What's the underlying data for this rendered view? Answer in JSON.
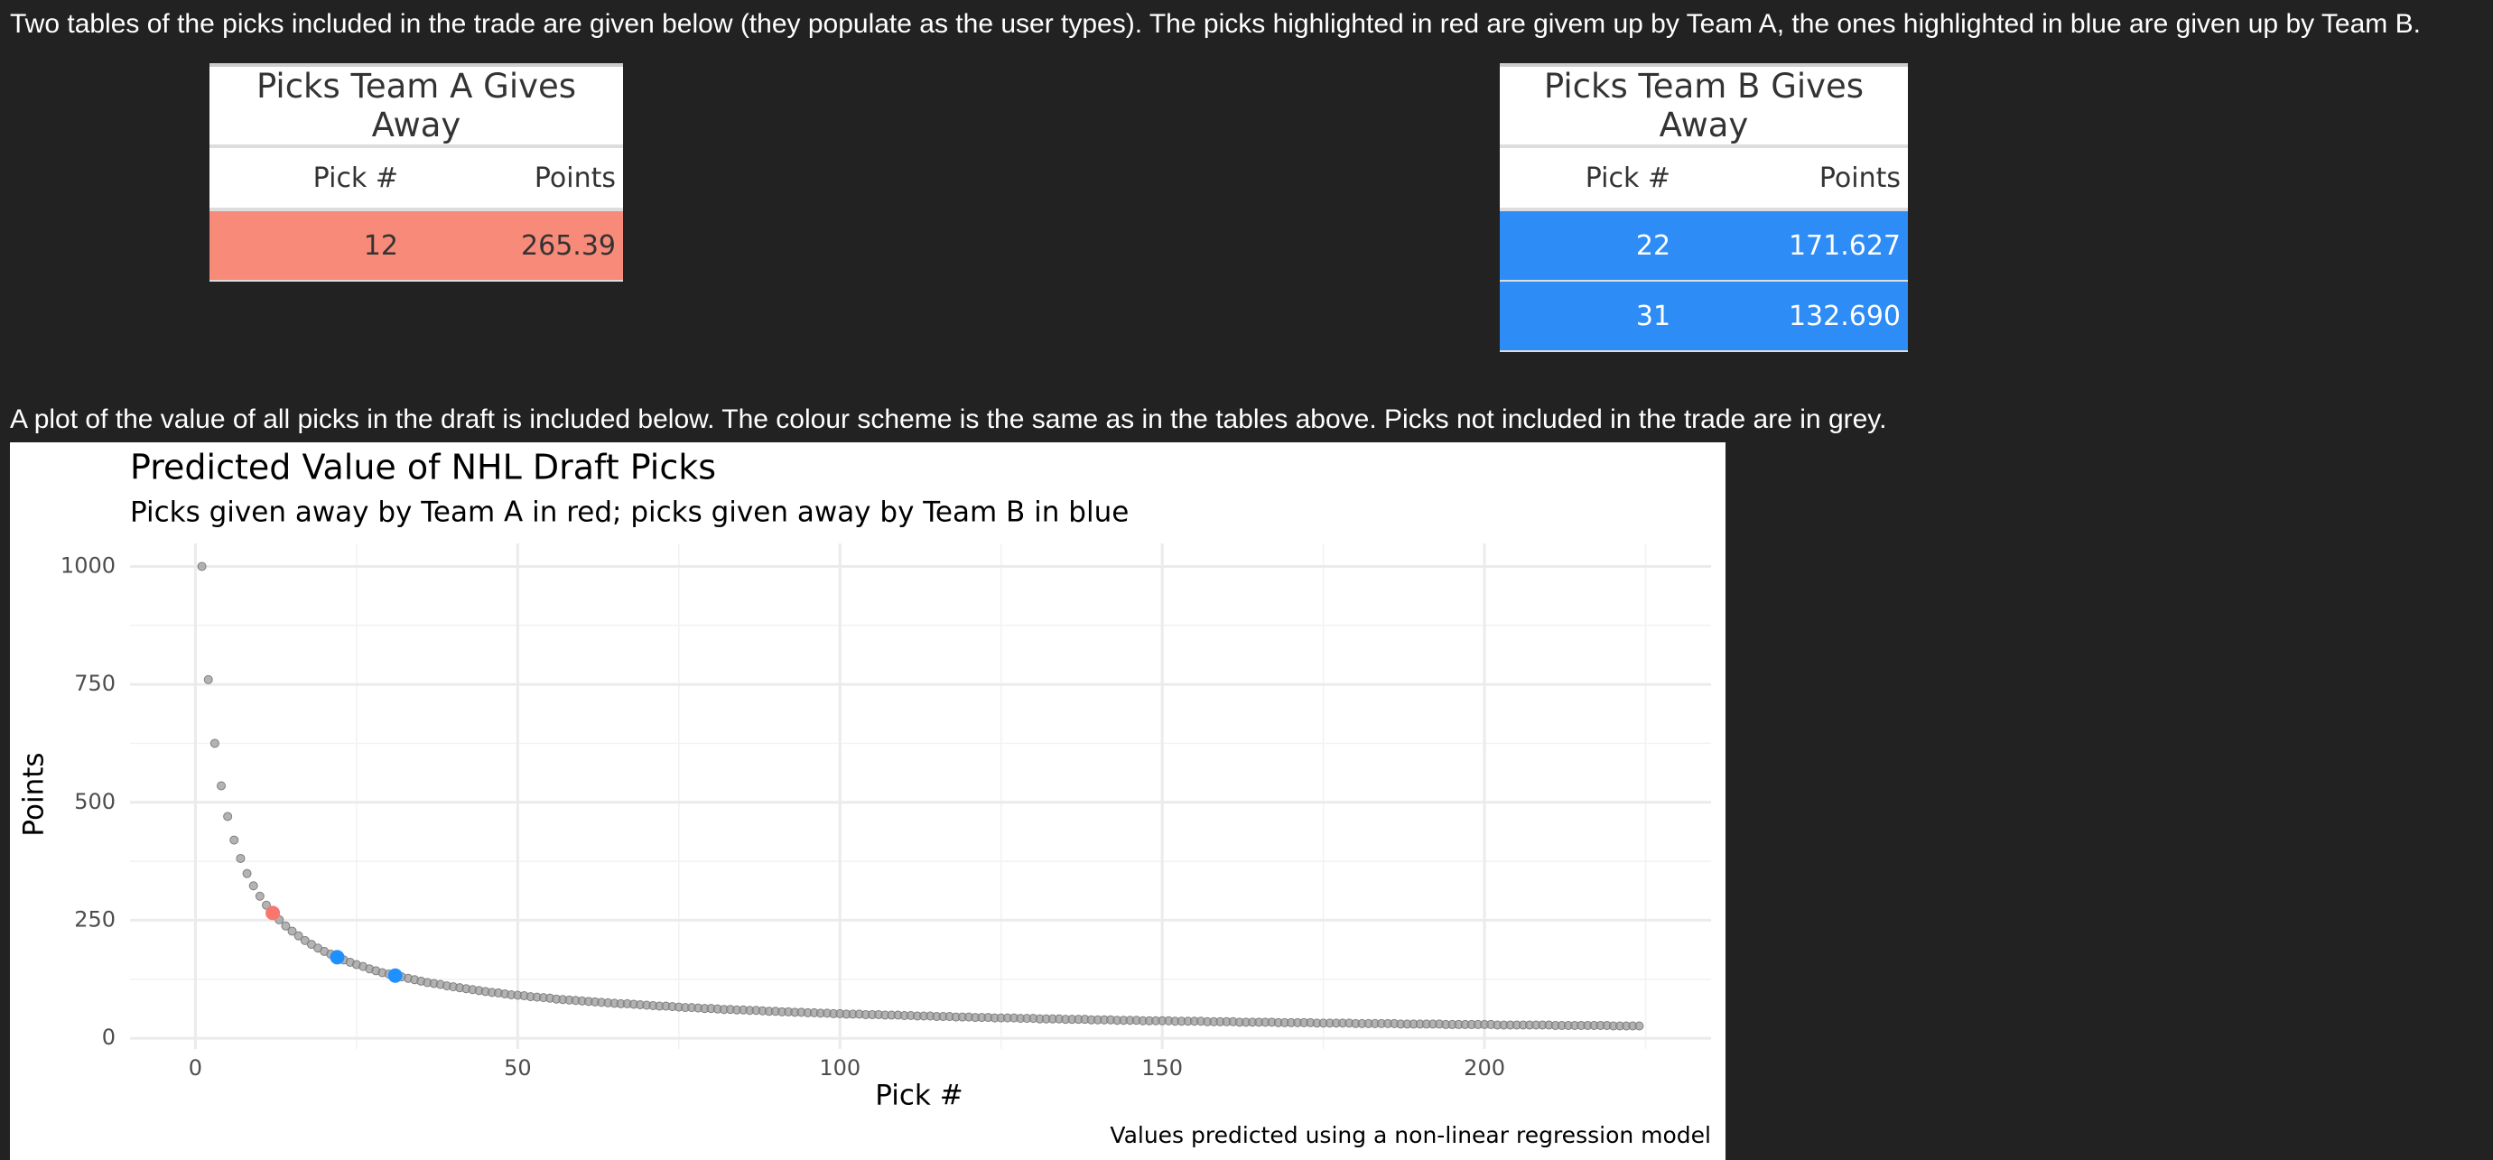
{
  "intro": "Two tables of the picks included in the trade are given below (they populate as the user types). The picks highlighted in red are givem up by Team A, the ones highlighted in blue are given up by Team B.",
  "table_a": {
    "title": "Picks Team A Gives Away",
    "columns": [
      "Pick #",
      "Points"
    ],
    "rows": [
      [
        "12",
        "265.39"
      ]
    ],
    "color": "#f88a7a",
    "text_color": "#333333"
  },
  "table_b": {
    "title": "Picks Team B Gives Away",
    "columns": [
      "Pick #",
      "Points"
    ],
    "rows": [
      [
        "22",
        "171.627"
      ],
      [
        "31",
        "132.690"
      ]
    ],
    "color": "#2e8cf6",
    "text_color": "#ffffff"
  },
  "plot_intro": "A plot of the value of all picks in the draft is included below. The colour scheme is the same as in the tables above. Picks not included in the trade are in grey.",
  "chart_data": {
    "type": "scatter",
    "title": "Predicted Value of NHL Draft Picks",
    "subtitle": "Picks given away by Team A in red; picks given away by Team B in blue",
    "x_label": "Pick #",
    "y_label": "Points",
    "caption": "Values predicted using a non-linear regression model",
    "color": "#999999",
    "highlight_colors": {
      "table_a": "#f8766d",
      "table_b": "#1e90ff"
    },
    "grid": true,
    "xlim": [
      -10.15,
      235.15
    ],
    "xticks": [
      0,
      50,
      100,
      150,
      200
    ],
    "ylim": [
      -22.8,
      1048.7
    ],
    "yticks": [
      0,
      250,
      500,
      750,
      1000
    ],
    "x": [
      1,
      2,
      3,
      4,
      5,
      6,
      7,
      8,
      9,
      10,
      11,
      12,
      13,
      14,
      15,
      16,
      17,
      18,
      19,
      20,
      21,
      22,
      23,
      24,
      25,
      26,
      27,
      28,
      29,
      30,
      31,
      32,
      33,
      34,
      35,
      36,
      37,
      38,
      39,
      40,
      41,
      42,
      43,
      44,
      45,
      46,
      47,
      48,
      49,
      50,
      51,
      52,
      53,
      54,
      55,
      56,
      57,
      58,
      59,
      60,
      61,
      62,
      63,
      64,
      65,
      66,
      67,
      68,
      69,
      70,
      71,
      72,
      73,
      74,
      75,
      76,
      77,
      78,
      79,
      80,
      81,
      82,
      83,
      84,
      85,
      86,
      87,
      88,
      89,
      90,
      91,
      92,
      93,
      94,
      95,
      96,
      97,
      98,
      99,
      100,
      101,
      102,
      103,
      104,
      105,
      106,
      107,
      108,
      109,
      110,
      111,
      112,
      113,
      114,
      115,
      116,
      117,
      118,
      119,
      120,
      121,
      122,
      123,
      124,
      125,
      126,
      127,
      128,
      129,
      130,
      131,
      132,
      133,
      134,
      135,
      136,
      137,
      138,
      139,
      140,
      141,
      142,
      143,
      144,
      145,
      146,
      147,
      148,
      149,
      150,
      151,
      152,
      153,
      154,
      155,
      156,
      157,
      158,
      159,
      160,
      161,
      162,
      163,
      164,
      165,
      166,
      167,
      168,
      169,
      170,
      171,
      172,
      173,
      174,
      175,
      176,
      177,
      178,
      179,
      180,
      181,
      182,
      183,
      184,
      185,
      186,
      187,
      188,
      189,
      190,
      191,
      192,
      193,
      194,
      195,
      196,
      197,
      198,
      199,
      200,
      201,
      202,
      203,
      204,
      205,
      206,
      207,
      208,
      209,
      210,
      211,
      212,
      213,
      214,
      215,
      216,
      217,
      218,
      219,
      220,
      221,
      222,
      223,
      224
    ],
    "values": [
      1000,
      760,
      625,
      535,
      470,
      420,
      381,
      349,
      323,
      301,
      282,
      265.39,
      251,
      238,
      227,
      217,
      207,
      199,
      191,
      184,
      178,
      171.627,
      166,
      161,
      156,
      152,
      147,
      143,
      139,
      136,
      132.69,
      130,
      127,
      124,
      121,
      118,
      116,
      114,
      111,
      109,
      107,
      105,
      103,
      101,
      99,
      97,
      96,
      94,
      92,
      91,
      90,
      88,
      87,
      86,
      85,
      83,
      82,
      81,
      80,
      79,
      78,
      77,
      76,
      75,
      74,
      73,
      73,
      72,
      71,
      70,
      69,
      68,
      68,
      67,
      66,
      65,
      65,
      64,
      63,
      63,
      62,
      61,
      61,
      60,
      60,
      59,
      59,
      58,
      57,
      57,
      56,
      56,
      55,
      55,
      54,
      54,
      53,
      53,
      52,
      52,
      51,
      51,
      51,
      50,
      50,
      50,
      49,
      49,
      49,
      48,
      48,
      47,
      47,
      47,
      46,
      46,
      46,
      45,
      45,
      45,
      44,
      44,
      44,
      43,
      43,
      43,
      43,
      42,
      42,
      42,
      41,
      41,
      41,
      41,
      40,
      40,
      40,
      40,
      39,
      39,
      39,
      39,
      38,
      38,
      38,
      38,
      37,
      37,
      37,
      37,
      37,
      36,
      36,
      36,
      36,
      36,
      35,
      35,
      35,
      35,
      35,
      34,
      34,
      34,
      34,
      34,
      34,
      33,
      33,
      33,
      33,
      33,
      33,
      32,
      32,
      32,
      32,
      32,
      32,
      31,
      31,
      31,
      31,
      31,
      31,
      31,
      30,
      30,
      30,
      30,
      30,
      30,
      30,
      29,
      29,
      29,
      29,
      29,
      29,
      29,
      29,
      28,
      28,
      28,
      28,
      28,
      28,
      28,
      28,
      28,
      27,
      27,
      27,
      27,
      27,
      27,
      27,
      27,
      27,
      26,
      26,
      26,
      26,
      26
    ]
  }
}
